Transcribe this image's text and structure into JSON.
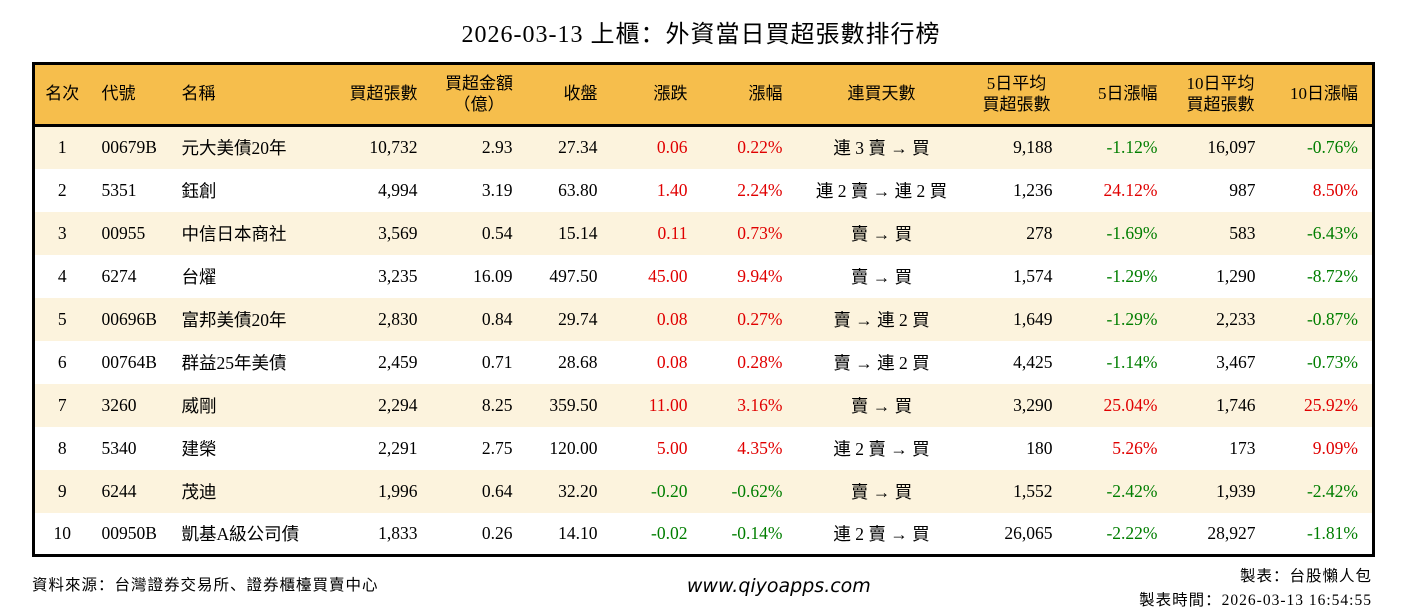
{
  "title": "2026-03-13 上櫃：外資當日買超張數排行榜",
  "table": {
    "headers": [
      "名次",
      "代號",
      "名稱",
      "買超張數",
      "買超金額\n（億）",
      "收盤",
      "漲跌",
      "漲幅",
      "連買天數",
      "5日平均\n買超張數",
      "5日漲幅",
      "10日平均\n買超張數",
      "10日漲幅"
    ],
    "rows": [
      {
        "rank": "1",
        "code": "00679B",
        "name": "元大美債20年",
        "buy_volume": "10,732",
        "buy_amount": "2.93",
        "close": "27.34",
        "change": "0.06",
        "change_pct": "0.22%",
        "streak": "連 3 賣 → 買",
        "avg5_volume": "9,188",
        "pct5": "-1.12%",
        "avg10_volume": "16,097",
        "pct10": "-0.76%"
      },
      {
        "rank": "2",
        "code": "5351",
        "name": "鈺創",
        "buy_volume": "4,994",
        "buy_amount": "3.19",
        "close": "63.80",
        "change": "1.40",
        "change_pct": "2.24%",
        "streak": "連 2 賣 → 連 2 買",
        "avg5_volume": "1,236",
        "pct5": "24.12%",
        "avg10_volume": "987",
        "pct10": "8.50%"
      },
      {
        "rank": "3",
        "code": "00955",
        "name": "中信日本商社",
        "buy_volume": "3,569",
        "buy_amount": "0.54",
        "close": "15.14",
        "change": "0.11",
        "change_pct": "0.73%",
        "streak": "賣 → 買",
        "avg5_volume": "278",
        "pct5": "-1.69%",
        "avg10_volume": "583",
        "pct10": "-6.43%"
      },
      {
        "rank": "4",
        "code": "6274",
        "name": "台燿",
        "buy_volume": "3,235",
        "buy_amount": "16.09",
        "close": "497.50",
        "change": "45.00",
        "change_pct": "9.94%",
        "streak": "賣 → 買",
        "avg5_volume": "1,574",
        "pct5": "-1.29%",
        "avg10_volume": "1,290",
        "pct10": "-8.72%"
      },
      {
        "rank": "5",
        "code": "00696B",
        "name": "富邦美債20年",
        "buy_volume": "2,830",
        "buy_amount": "0.84",
        "close": "29.74",
        "change": "0.08",
        "change_pct": "0.27%",
        "streak": "賣 → 連 2 買",
        "avg5_volume": "1,649",
        "pct5": "-1.29%",
        "avg10_volume": "2,233",
        "pct10": "-0.87%"
      },
      {
        "rank": "6",
        "code": "00764B",
        "name": "群益25年美債",
        "buy_volume": "2,459",
        "buy_amount": "0.71",
        "close": "28.68",
        "change": "0.08",
        "change_pct": "0.28%",
        "streak": "賣 → 連 2 買",
        "avg5_volume": "4,425",
        "pct5": "-1.14%",
        "avg10_volume": "3,467",
        "pct10": "-0.73%"
      },
      {
        "rank": "7",
        "code": "3260",
        "name": "威剛",
        "buy_volume": "2,294",
        "buy_amount": "8.25",
        "close": "359.50",
        "change": "11.00",
        "change_pct": "3.16%",
        "streak": "賣 → 買",
        "avg5_volume": "3,290",
        "pct5": "25.04%",
        "avg10_volume": "1,746",
        "pct10": "25.92%"
      },
      {
        "rank": "8",
        "code": "5340",
        "name": "建榮",
        "buy_volume": "2,291",
        "buy_amount": "2.75",
        "close": "120.00",
        "change": "5.00",
        "change_pct": "4.35%",
        "streak": "連 2 賣 → 買",
        "avg5_volume": "180",
        "pct5": "5.26%",
        "avg10_volume": "173",
        "pct10": "9.09%"
      },
      {
        "rank": "9",
        "code": "6244",
        "name": "茂迪",
        "buy_volume": "1,996",
        "buy_amount": "0.64",
        "close": "32.20",
        "change": "-0.20",
        "change_pct": "-0.62%",
        "streak": "賣 → 買",
        "avg5_volume": "1,552",
        "pct5": "-2.42%",
        "avg10_volume": "1,939",
        "pct10": "-2.42%"
      },
      {
        "rank": "10",
        "code": "00950B",
        "name": "凱基A級公司債",
        "buy_volume": "1,833",
        "buy_amount": "0.26",
        "close": "14.10",
        "change": "-0.02",
        "change_pct": "-0.14%",
        "streak": "連 2 賣 → 買",
        "avg5_volume": "26,065",
        "pct5": "-2.22%",
        "avg10_volume": "28,927",
        "pct10": "-1.81%"
      }
    ]
  },
  "footer": {
    "source": "資料來源：台灣證券交易所、證券櫃檯買賣中心",
    "website": "www.qiyoapps.com",
    "maker": "製表：台股懶人包",
    "made_time": "製表時間：2026-03-13 16:54:55"
  },
  "colors": {
    "up": "#e00000",
    "down": "#007e00",
    "header_bg": "#f6be4c",
    "row_stripe_bg": "#fcf3dd",
    "border": "#000000"
  }
}
